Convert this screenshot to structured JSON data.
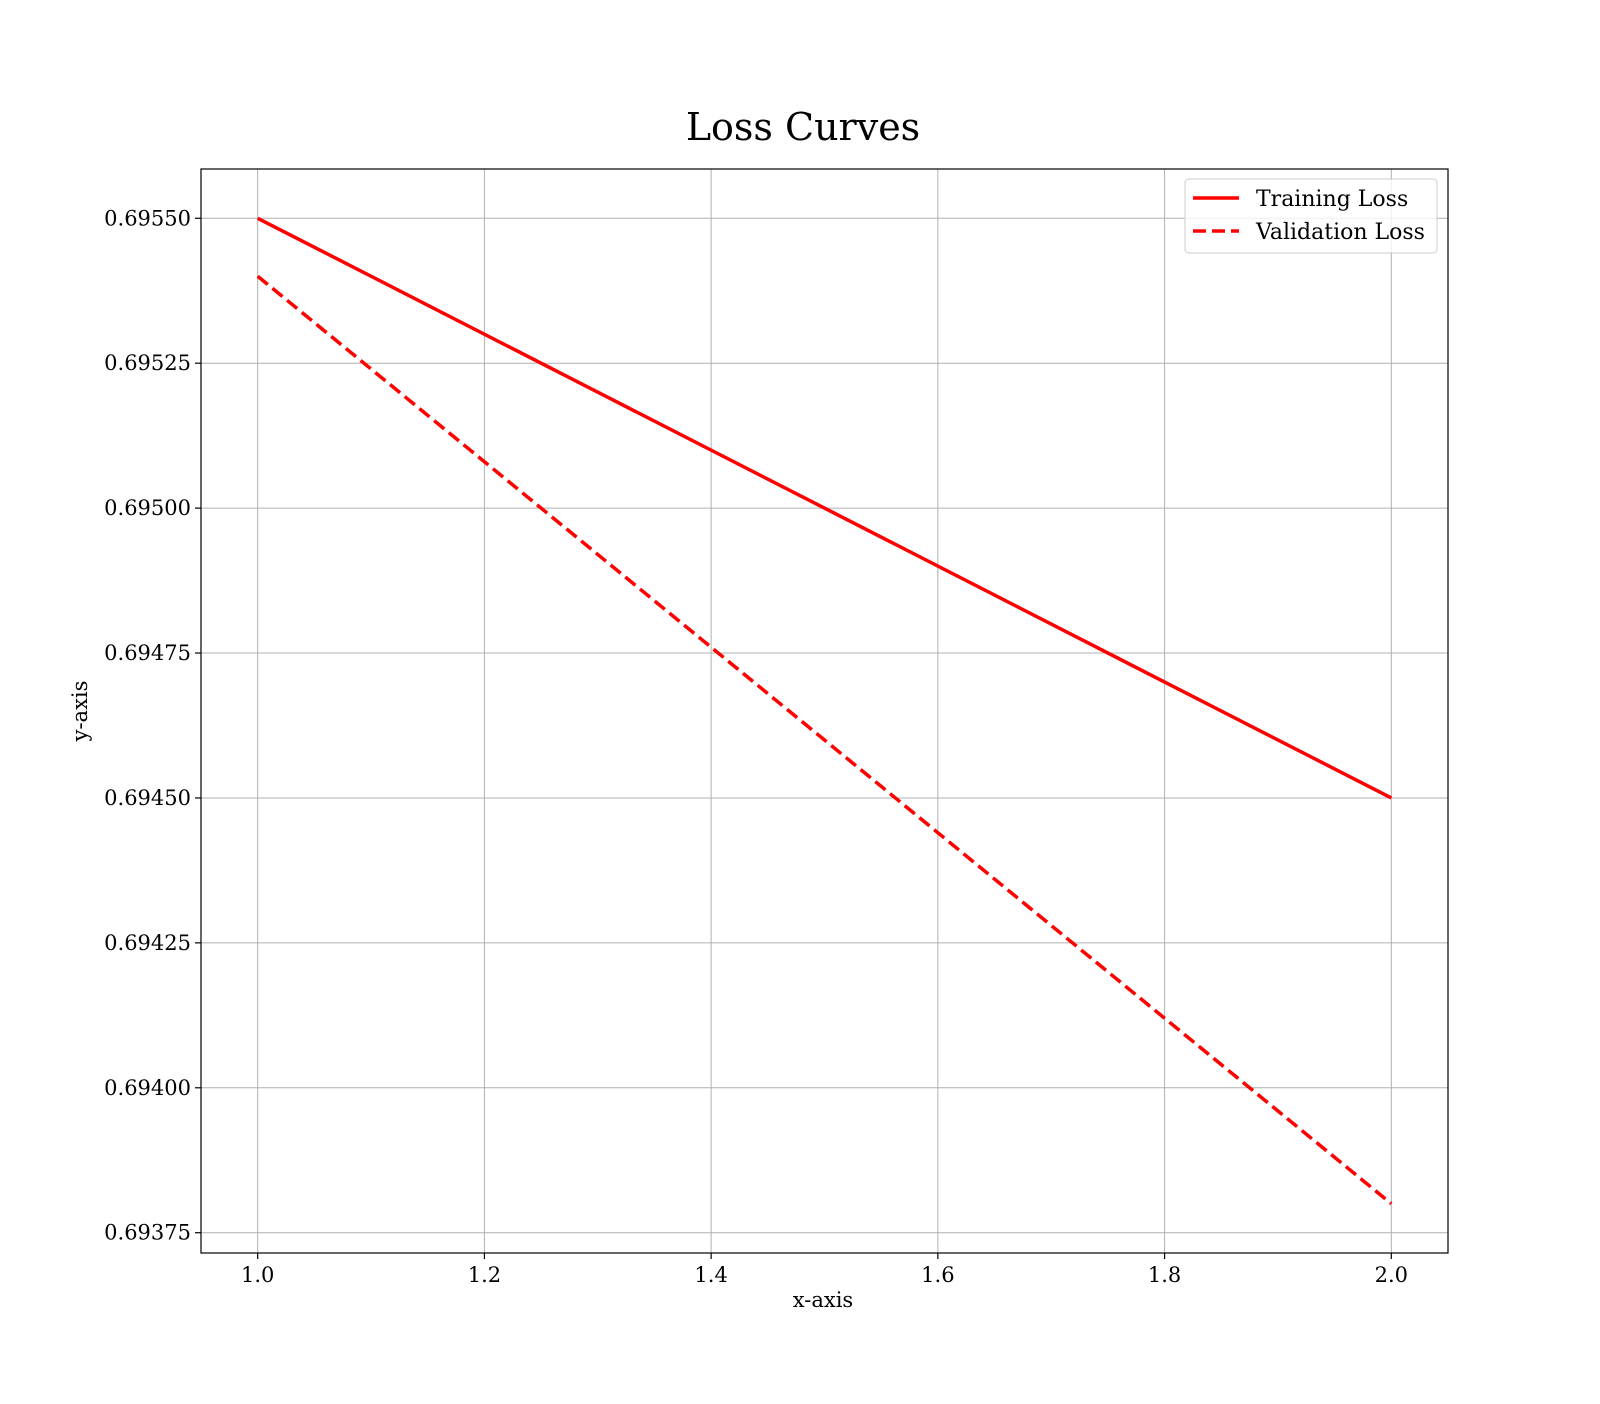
{
  "chart_data": {
    "type": "line",
    "title": "Loss Curves",
    "xlabel": "x-axis",
    "ylabel": "y-axis",
    "xlim": [
      0.95,
      2.05
    ],
    "ylim": [
      0.693715,
      0.695585
    ],
    "xticks": [
      1.0,
      1.2,
      1.4,
      1.6,
      1.8,
      2.0
    ],
    "xtick_labels": [
      "1.0",
      "1.2",
      "1.4",
      "1.6",
      "1.8",
      "2.0"
    ],
    "yticks": [
      0.69375,
      0.694,
      0.69425,
      0.6945,
      0.69475,
      0.695,
      0.69525,
      0.6955
    ],
    "ytick_labels": [
      "0.69375",
      "0.69400",
      "0.69425",
      "0.69450",
      "0.69475",
      "0.69500",
      "0.69525",
      "0.69550"
    ],
    "grid": true,
    "legend_position": "top-right",
    "series": [
      {
        "name": "Training Loss",
        "x": [
          1.0,
          2.0
        ],
        "y": [
          0.6955,
          0.6945
        ],
        "color": "#ff0000",
        "line_style": "solid"
      },
      {
        "name": "Validation Loss",
        "x": [
          1.0,
          2.0
        ],
        "y": [
          0.6954,
          0.6938
        ],
        "color": "#ff0000",
        "line_style": "dashed"
      }
    ]
  }
}
